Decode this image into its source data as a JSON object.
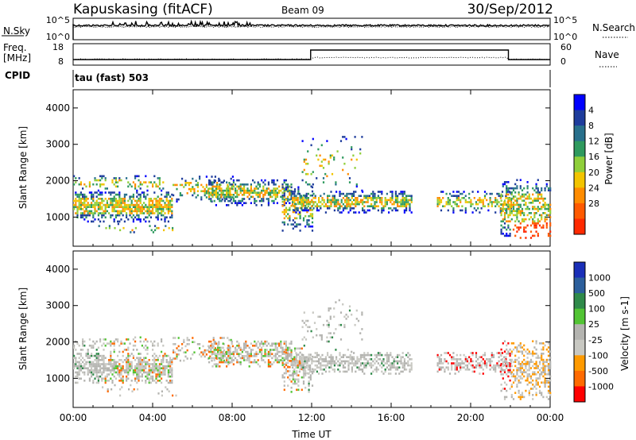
{
  "header": {
    "station": "Kapuskasing (fitACF)",
    "beam": "Beam 09",
    "date": "30/Sep/2012"
  },
  "top_panels": {
    "nsky": {
      "label": "N.Sky",
      "left_ticks": [
        "10^5",
        "10^0"
      ],
      "right_label": "N.Search",
      "right_ticks": [
        "10^5",
        "10^0"
      ]
    },
    "freq": {
      "label_line1": "Freq.",
      "label_line2": "[MHz]",
      "left_ticks": [
        "18",
        "8"
      ],
      "right_label": "Nave",
      "right_ticks": [
        "60",
        "0"
      ]
    },
    "cpid_label": "CPID",
    "cpid_value": "tau (fast) 503"
  },
  "chart_data": [
    {
      "type": "heatmap",
      "name": "power",
      "title": "",
      "xlabel": "Time UT",
      "ylabel": "Slant Range [km]",
      "x_ticks": [
        "00:00",
        "04:00",
        "08:00",
        "12:00",
        "16:00",
        "20:00",
        "00:00"
      ],
      "xlim": [
        0,
        24
      ],
      "ylim": [
        200,
        4500
      ],
      "y_ticks": [
        1000,
        2000,
        3000,
        4000
      ],
      "colorbar": {
        "label": "Power [dB]",
        "ticks": [
          "4",
          "8",
          "12",
          "16",
          "20",
          "24",
          "28"
        ],
        "colors": [
          "#0000ff",
          "#1e3c9c",
          "#28708c",
          "#2f9a5e",
          "#8fcf3a",
          "#f2c400",
          "#ff8c00",
          "#ff5a00",
          "#ff2a00"
        ]
      }
    },
    {
      "type": "heatmap",
      "name": "velocity",
      "title": "",
      "xlabel": "Time UT",
      "ylabel": "Slant Range [km]",
      "x_ticks": [
        "00:00",
        "04:00",
        "08:00",
        "12:00",
        "16:00",
        "20:00",
        "00:00"
      ],
      "xlim": [
        0,
        24
      ],
      "ylim": [
        200,
        4500
      ],
      "y_ticks": [
        1000,
        2000,
        3000,
        4000
      ],
      "colorbar": {
        "label": "Velocity [m s-1]",
        "ticks": [
          "1000",
          "500",
          "100",
          "25",
          "-25",
          "-100",
          "-500",
          "-1000"
        ],
        "colors": [
          "#1a2fb8",
          "#2c5f9c",
          "#2f8a4a",
          "#52c434",
          "#b4b4b0",
          "#c8c8c2",
          "#ff9a00",
          "#ff6a00",
          "#ff0000"
        ]
      }
    }
  ]
}
